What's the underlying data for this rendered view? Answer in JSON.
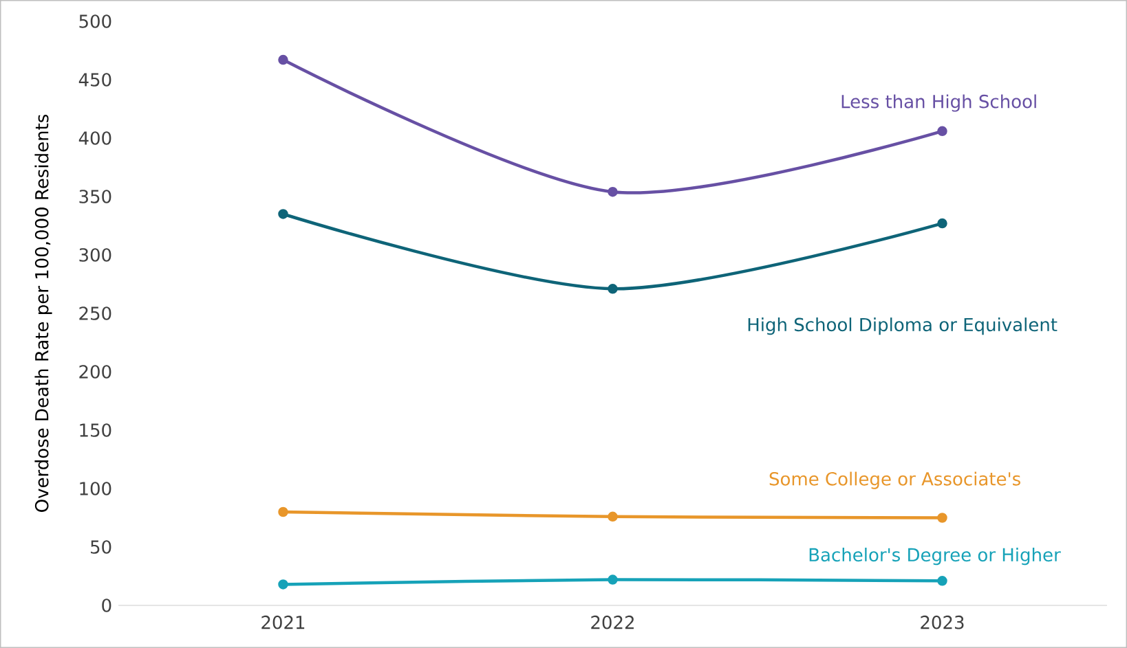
{
  "chart_data": {
    "type": "line",
    "ylabel": "Overdose Death Rate per 100,000 Residents",
    "categories": [
      "2021",
      "2022",
      "2023"
    ],
    "series": [
      {
        "name": "Less than High School",
        "color": "#6750a4",
        "values": [
          467,
          354,
          406
        ]
      },
      {
        "name": "High School Diploma or Equivalent",
        "color": "#0e6478",
        "values": [
          335,
          271,
          327
        ]
      },
      {
        "name": "Some College or Associate's",
        "color": "#e8962a",
        "values": [
          80,
          76,
          75
        ]
      },
      {
        "name": "Bachelor's Degree or Higher",
        "color": "#16a2b8",
        "values": [
          18,
          22,
          21
        ]
      }
    ],
    "ylim": [
      0,
      500
    ],
    "yticks": [
      0,
      50,
      100,
      150,
      200,
      250,
      300,
      350,
      400,
      450,
      500
    ],
    "marker": "circle"
  }
}
